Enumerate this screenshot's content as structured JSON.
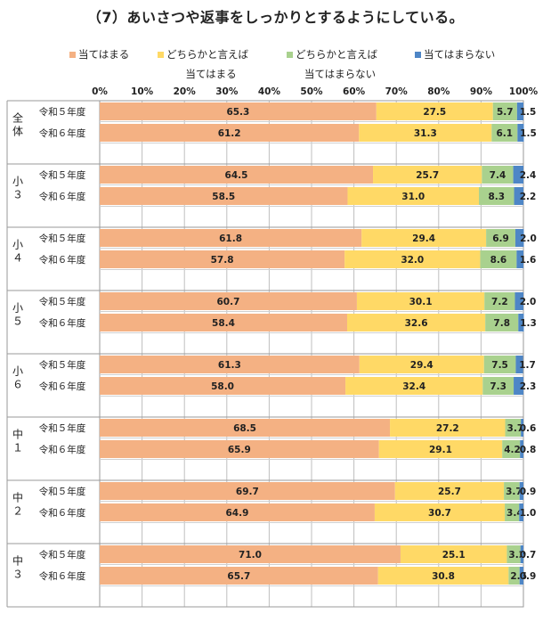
{
  "chart_data": {
    "type": "bar",
    "stacked": "percent",
    "orientation": "horizontal",
    "title": "（7）あいさつや返事をしっかりとするようにしている。",
    "legend": {
      "placement": "top",
      "entries": [
        {
          "label": "当てはまる",
          "color": "#f4b183"
        },
        {
          "label": "どちらかと言えば当てはまる",
          "label_line1": "どちらかと言えば",
          "label_line2": "当てはまる",
          "color": "#ffd966"
        },
        {
          "label": "どちらかと言えば当てはまらない",
          "label_line1": "どちらかと言えば",
          "label_line2": "当てはまらない",
          "color": "#a9d18e"
        },
        {
          "label": "当てはまらない",
          "color": "#4e86c6"
        }
      ]
    },
    "xlim": [
      0,
      100
    ],
    "xticks": [
      "0%",
      "10%",
      "20%",
      "30%",
      "40%",
      "50%",
      "60%",
      "70%",
      "80%",
      "90%",
      "100%"
    ],
    "grid": true,
    "groups": [
      {
        "name": "全体",
        "rows": [
          {
            "label": "令和５年度",
            "values": [
              65.3,
              27.5,
              5.7,
              1.5
            ],
            "labels": [
              "65.3",
              "27.5",
              "5.7",
              "1.5"
            ]
          },
          {
            "label": "令和６年度",
            "values": [
              61.2,
              31.3,
              6.1,
              1.5
            ],
            "labels": [
              "61.2",
              "31.3",
              "6.1",
              "1.5"
            ]
          }
        ]
      },
      {
        "name": "小３",
        "rows": [
          {
            "label": "令和５年度",
            "values": [
              64.5,
              25.7,
              7.4,
              2.4
            ],
            "labels": [
              "64.5",
              "25.7",
              "7.4",
              "2.4"
            ]
          },
          {
            "label": "令和６年度",
            "values": [
              58.5,
              31.0,
              8.3,
              2.2
            ],
            "labels": [
              "58.5",
              "31.0",
              "8.3",
              "2.2"
            ]
          }
        ]
      },
      {
        "name": "小４",
        "rows": [
          {
            "label": "令和５年度",
            "values": [
              61.8,
              29.4,
              6.9,
              2.0
            ],
            "labels": [
              "61.8",
              "29.4",
              "6.9",
              "2.0"
            ]
          },
          {
            "label": "令和６年度",
            "values": [
              57.8,
              32.0,
              8.6,
              1.6
            ],
            "labels": [
              "57.8",
              "32.0",
              "8.6",
              "1.6"
            ]
          }
        ]
      },
      {
        "name": "小５",
        "rows": [
          {
            "label": "令和５年度",
            "values": [
              60.7,
              30.1,
              7.2,
              2.0
            ],
            "labels": [
              "60.7",
              "30.1",
              "7.2",
              "2.0"
            ]
          },
          {
            "label": "令和６年度",
            "values": [
              58.4,
              32.6,
              7.8,
              1.3
            ],
            "labels": [
              "58.4",
              "32.6",
              "7.8",
              "1.3"
            ]
          }
        ]
      },
      {
        "name": "小６",
        "rows": [
          {
            "label": "令和５年度",
            "values": [
              61.3,
              29.4,
              7.5,
              1.7
            ],
            "labels": [
              "61.3",
              "29.4",
              "7.5",
              "1.7"
            ]
          },
          {
            "label": "令和６年度",
            "values": [
              58.0,
              32.4,
              7.3,
              2.3
            ],
            "labels": [
              "58.0",
              "32.4",
              "7.3",
              "2.3"
            ]
          }
        ]
      },
      {
        "name": "中１",
        "rows": [
          {
            "label": "令和５年度",
            "values": [
              68.5,
              27.2,
              3.7,
              0.6
            ],
            "labels": [
              "68.5",
              "27.2",
              "3.7",
              "0.6"
            ]
          },
          {
            "label": "令和６年度",
            "values": [
              65.9,
              29.1,
              4.2,
              0.8
            ],
            "labels": [
              "65.9",
              "29.1",
              "4.2",
              "0.8"
            ]
          }
        ]
      },
      {
        "name": "中２",
        "rows": [
          {
            "label": "令和５年度",
            "values": [
              69.7,
              25.7,
              3.7,
              0.9
            ],
            "labels": [
              "69.7",
              "25.7",
              "3.7",
              "0.9"
            ]
          },
          {
            "label": "令和６年度",
            "values": [
              64.9,
              30.7,
              3.4,
              1.0
            ],
            "labels": [
              "64.9",
              "30.7",
              "3.4",
              "1.0"
            ]
          }
        ]
      },
      {
        "name": "中３",
        "rows": [
          {
            "label": "令和５年度",
            "values": [
              71.0,
              25.1,
              3.2,
              0.7
            ],
            "labels": [
              "71.0",
              "25.1",
              "3.2",
              "0.7"
            ]
          },
          {
            "label": "令和６年度",
            "values": [
              65.7,
              30.8,
              2.6,
              0.9
            ],
            "labels": [
              "65.7",
              "30.8",
              "2.6",
              "0.9"
            ]
          }
        ]
      }
    ]
  }
}
